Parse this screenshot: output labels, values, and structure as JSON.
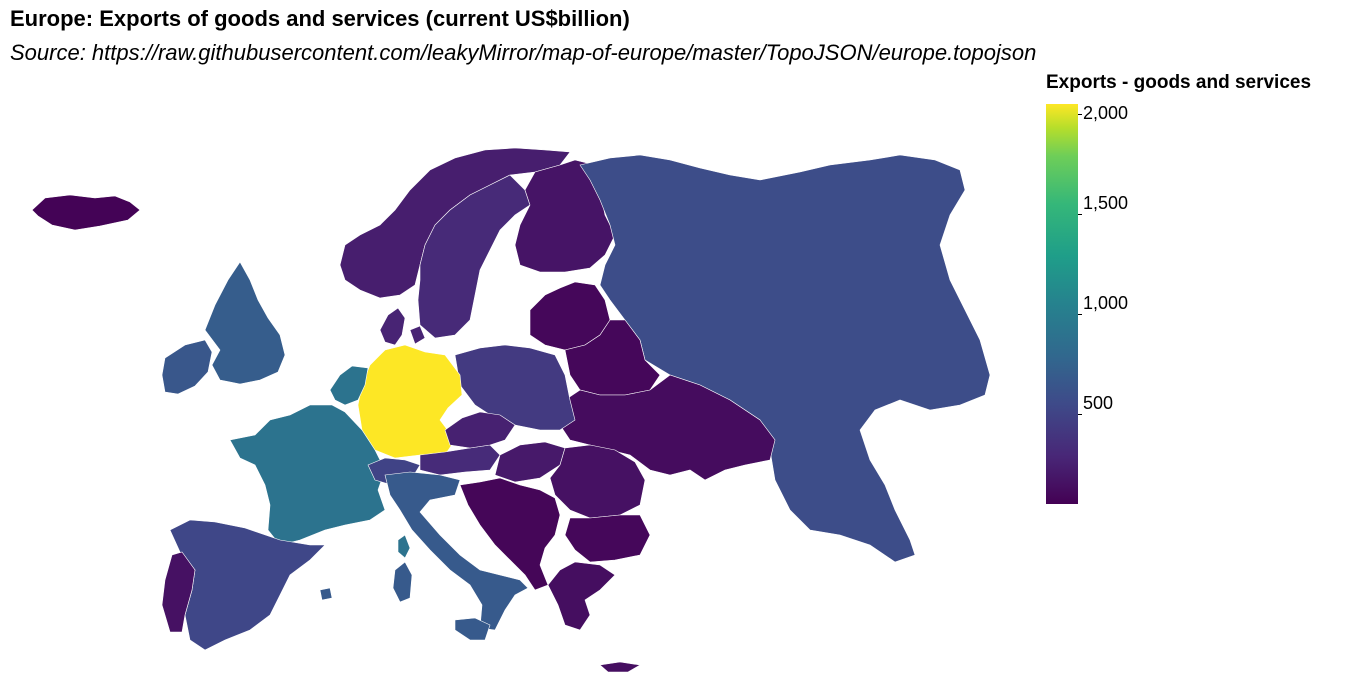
{
  "title": "Europe: Exports of goods and services (current US$billion)",
  "subtitle": "Source: https://raw.githubusercontent.com/leakyMirror/map-of-europe/master/TopoJSON/europe.topojson",
  "legend": {
    "title": "Exports - goods and services",
    "ticks": [
      "2,000",
      "1,500",
      "1,000",
      "500"
    ]
  },
  "colors": {
    "low": "#440154",
    "high": "#fde725"
  },
  "chart_data": {
    "type": "choropleth",
    "title": "Europe: Exports of goods and services (current US$billion)",
    "legend_title": "Exports - goods and services",
    "color_scale": "viridis",
    "color_domain": [
      0,
      2000
    ],
    "legend_ticks": [
      500,
      1000,
      1500,
      2000
    ],
    "regions": [
      {
        "name": "Germany",
        "value": 2000
      },
      {
        "name": "Netherlands",
        "value": 850
      },
      {
        "name": "France",
        "value": 850
      },
      {
        "name": "Italy",
        "value": 630
      },
      {
        "name": "United Kingdom",
        "value": 650
      },
      {
        "name": "Russia",
        "value": 520
      },
      {
        "name": "Spain",
        "value": 480
      },
      {
        "name": "Poland",
        "value": 380
      },
      {
        "name": "Switzerland",
        "value": 450
      },
      {
        "name": "Sweden",
        "value": 260
      },
      {
        "name": "Norway",
        "value": 180
      },
      {
        "name": "Finland",
        "value": 120
      },
      {
        "name": "Denmark",
        "value": 220
      },
      {
        "name": "Austria",
        "value": 270
      },
      {
        "name": "Czechia",
        "value": 200
      },
      {
        "name": "Hungary",
        "value": 150
      },
      {
        "name": "Romania",
        "value": 100
      },
      {
        "name": "Ukraine",
        "value": 70
      },
      {
        "name": "Belarus",
        "value": 40
      },
      {
        "name": "Portugal",
        "value": 100
      },
      {
        "name": "Greece",
        "value": 80
      },
      {
        "name": "Ireland",
        "value": 600
      },
      {
        "name": "Iceland",
        "value": 15
      },
      {
        "name": "Bulgaria",
        "value": 40
      },
      {
        "name": "Balkans",
        "value": 30
      },
      {
        "name": "Baltics",
        "value": 40
      },
      {
        "name": "Sardinia",
        "value": 630
      },
      {
        "name": "Sicily",
        "value": 630
      },
      {
        "name": "Corsica",
        "value": 850
      }
    ]
  }
}
